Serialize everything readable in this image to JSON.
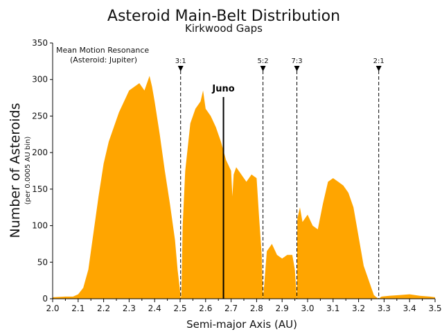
{
  "chart_data": {
    "type": "area",
    "title": "Asteroid Main-Belt Distribution",
    "subtitle": "Kirkwood Gaps",
    "xlabel": "Semi-major Axis (AU)",
    "ylabel": "Number of Asteroids",
    "ylabel_sub": "(per 0.0005 AU bin)",
    "xlim": [
      2.0,
      3.5
    ],
    "ylim": [
      0,
      350
    ],
    "xticks": [
      "2.0",
      "2.1",
      "2.2",
      "2.3",
      "2.4",
      "2.5",
      "2.6",
      "2.7",
      "2.8",
      "2.9",
      "3.0",
      "3.1",
      "3.2",
      "3.3",
      "3.4",
      "3.5"
    ],
    "yticks": [
      "0",
      "50",
      "100",
      "150",
      "200",
      "250",
      "300",
      "350"
    ],
    "grid": false,
    "fill_color": "#FFA500",
    "annotation_title": "Mean Motion Resonance",
    "annotation_subtitle": "(Asteroid: Jupiter)",
    "resonances": [
      {
        "label": "3:1",
        "x": 2.502
      },
      {
        "label": "5:2",
        "x": 2.825
      },
      {
        "label": "7:3",
        "x": 2.958
      },
      {
        "label": "2:1",
        "x": 3.279
      }
    ],
    "marker": {
      "label": "Juno",
      "x": 2.67
    },
    "x": [
      2.0,
      2.05,
      2.08,
      2.1,
      2.12,
      2.14,
      2.16,
      2.18,
      2.2,
      2.22,
      2.24,
      2.26,
      2.28,
      2.3,
      2.32,
      2.34,
      2.36,
      2.38,
      2.39,
      2.4,
      2.42,
      2.44,
      2.46,
      2.48,
      2.49,
      2.5,
      2.502,
      2.505,
      2.51,
      2.52,
      2.54,
      2.56,
      2.58,
      2.59,
      2.6,
      2.62,
      2.64,
      2.66,
      2.68,
      2.7,
      2.705,
      2.71,
      2.72,
      2.74,
      2.76,
      2.78,
      2.8,
      2.81,
      2.82,
      2.825,
      2.83,
      2.84,
      2.86,
      2.88,
      2.9,
      2.92,
      2.94,
      2.95,
      2.958,
      2.96,
      2.97,
      2.98,
      3.0,
      3.02,
      3.04,
      3.06,
      3.08,
      3.1,
      3.12,
      3.14,
      3.16,
      3.18,
      3.2,
      3.22,
      3.24,
      3.26,
      3.27,
      3.279,
      3.29,
      3.32,
      3.36,
      3.4,
      3.44,
      3.48,
      3.5
    ],
    "values": [
      2,
      3,
      3,
      6,
      15,
      40,
      90,
      140,
      185,
      215,
      235,
      255,
      270,
      285,
      290,
      295,
      285,
      305,
      290,
      270,
      225,
      175,
      130,
      80,
      40,
      10,
      0,
      5,
      100,
      175,
      240,
      260,
      270,
      285,
      260,
      250,
      235,
      215,
      190,
      175,
      140,
      170,
      180,
      170,
      160,
      170,
      165,
      110,
      60,
      0,
      20,
      65,
      75,
      60,
      55,
      60,
      60,
      40,
      0,
      110,
      125,
      105,
      115,
      100,
      95,
      130,
      160,
      165,
      160,
      155,
      145,
      125,
      85,
      45,
      25,
      5,
      2,
      0,
      3,
      4,
      5,
      6,
      4,
      3,
      2
    ]
  }
}
